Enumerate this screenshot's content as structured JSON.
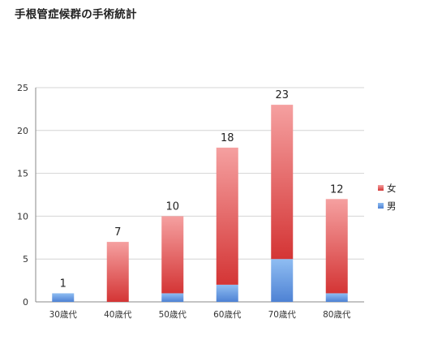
{
  "page": {
    "title": "手根管症候群の手術統計"
  },
  "chart_data": {
    "type": "bar",
    "stacked": true,
    "title": "",
    "xlabel": "",
    "ylabel": "",
    "categories": [
      "30歳代",
      "40歳代",
      "50歳代",
      "60歳代",
      "70歳代",
      "80歳代"
    ],
    "totals": [
      1,
      7,
      10,
      18,
      23,
      12
    ],
    "series": [
      {
        "name": "男",
        "values": [
          1,
          0,
          1,
          2,
          5,
          1
        ],
        "color": "#5b8fdc"
      },
      {
        "name": "女",
        "values": [
          0,
          7,
          9,
          16,
          18,
          11
        ],
        "color": "#d83b3b"
      }
    ],
    "ylim": [
      0,
      25
    ],
    "yticks": [
      0,
      5,
      10,
      15,
      20,
      25
    ],
    "grid": true,
    "legend_position": "right",
    "legend_order": [
      "女",
      "男"
    ]
  }
}
